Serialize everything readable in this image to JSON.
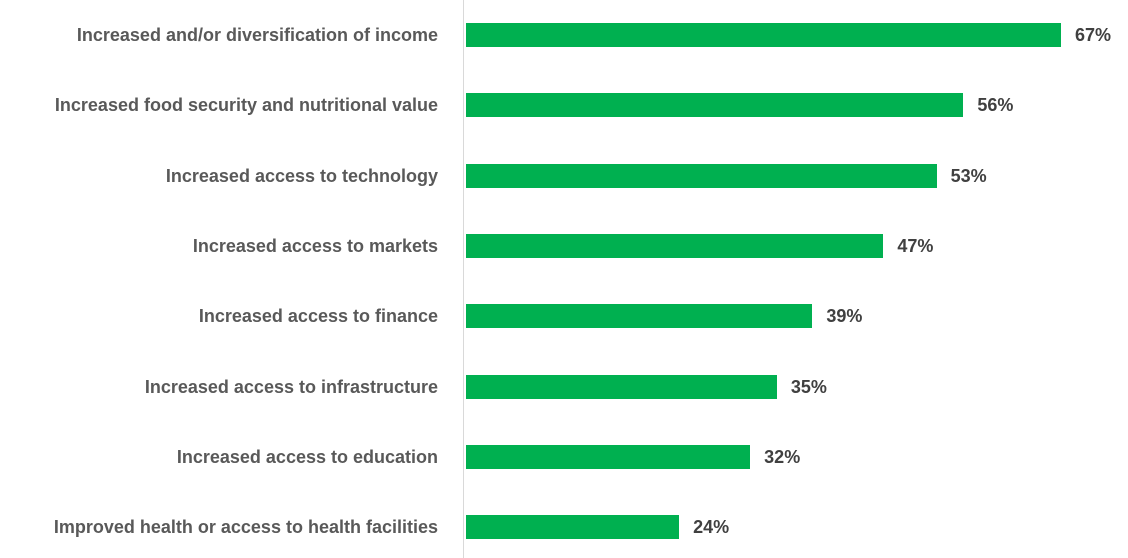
{
  "chart_data": {
    "type": "bar",
    "orientation": "horizontal",
    "categories": [
      "Increased and/or diversification of income",
      "Increased food security and nutritional value",
      "Increased access to technology",
      "Increased access to markets",
      "Increased access to finance",
      "Increased access to infrastructure",
      "Increased access to education",
      "Improved health or access to health facilities"
    ],
    "values": [
      67,
      56,
      53,
      47,
      39,
      35,
      32,
      24
    ],
    "value_labels": [
      "67%",
      "56%",
      "53%",
      "47%",
      "39%",
      "35%",
      "32%",
      "24%"
    ],
    "color": "#00b050"
  }
}
